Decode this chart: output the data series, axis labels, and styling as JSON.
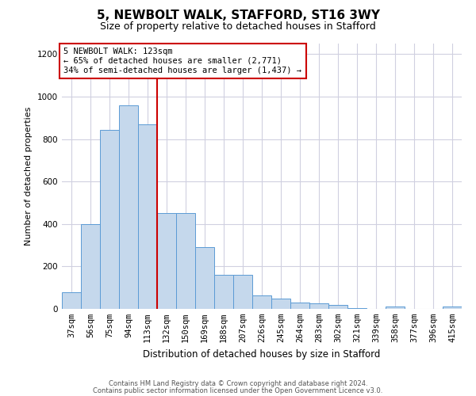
{
  "title": "5, NEWBOLT WALK, STAFFORD, ST16 3WY",
  "subtitle": "Size of property relative to detached houses in Stafford",
  "xlabel": "Distribution of detached houses by size in Stafford",
  "ylabel": "Number of detached properties",
  "categories": [
    "37sqm",
    "56sqm",
    "75sqm",
    "94sqm",
    "113sqm",
    "132sqm",
    "150sqm",
    "169sqm",
    "188sqm",
    "207sqm",
    "226sqm",
    "245sqm",
    "264sqm",
    "283sqm",
    "302sqm",
    "321sqm",
    "339sqm",
    "358sqm",
    "377sqm",
    "396sqm",
    "415sqm"
  ],
  "values": [
    80,
    400,
    845,
    960,
    870,
    450,
    450,
    290,
    160,
    160,
    65,
    50,
    30,
    25,
    20,
    5,
    0,
    10,
    0,
    0,
    10
  ],
  "bar_color": "#c5d8ec",
  "bar_edge_color": "#5b9bd5",
  "red_line_x": 4.5,
  "annotation_text1": "5 NEWBOLT WALK: 123sqm",
  "annotation_text2": "← 65% of detached houses are smaller (2,771)",
  "annotation_text3": "34% of semi-detached houses are larger (1,437) →",
  "annotation_box_color": "#ffffff",
  "annotation_box_edge": "#cc0000",
  "ylim": [
    0,
    1250
  ],
  "yticks": [
    0,
    200,
    400,
    600,
    800,
    1000,
    1200
  ],
  "footer1": "Contains HM Land Registry data © Crown copyright and database right 2024.",
  "footer2": "Contains public sector information licensed under the Open Government Licence v3.0.",
  "background_color": "#ffffff",
  "grid_color": "#d0d0e0",
  "title_fontsize": 11,
  "subtitle_fontsize": 9,
  "xlabel_fontsize": 8.5,
  "ylabel_fontsize": 8,
  "tick_fontsize": 7.5,
  "annotation_fontsize": 7.5,
  "footer_fontsize": 6.0
}
